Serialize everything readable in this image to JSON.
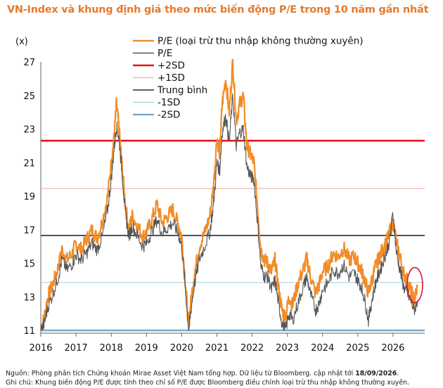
{
  "title": "VN-Index và khung định giá theo mức biến động P/E trong 10 năm gần nhất",
  "chart_data": {
    "type": "line",
    "unit_label": "(x)",
    "y_ticks": [
      11,
      13,
      15,
      17,
      19,
      21,
      23,
      25,
      27
    ],
    "x_ticks": [
      "2016",
      "2017",
      "2018",
      "2019",
      "2020",
      "2021",
      "2022",
      "2023",
      "2024",
      "2025",
      "2026"
    ],
    "ylim": [
      11,
      27
    ],
    "xlim": [
      2016.0,
      2026.9
    ],
    "legend": [
      "P/E (loại trừ thu nhập không thường xuyên)",
      "P/E",
      "+2SD",
      "+1SD",
      "Trung bình",
      "-1SD",
      "-2SD"
    ],
    "series": [
      {
        "name": "P/E (loại trừ thu nhập không thường xuyên)",
        "color": "#f28c28",
        "x": [
          2016.0,
          2016.1,
          2016.2,
          2016.35,
          2016.5,
          2016.6,
          2016.75,
          2016.9,
          2017.0,
          2017.15,
          2017.3,
          2017.45,
          2017.6,
          2017.75,
          2017.9,
          2018.0,
          2018.08,
          2018.15,
          2018.22,
          2018.3,
          2018.4,
          2018.5,
          2018.6,
          2018.75,
          2018.9,
          2019.0,
          2019.15,
          2019.3,
          2019.45,
          2019.6,
          2019.75,
          2019.9,
          2020.0,
          2020.1,
          2020.2,
          2020.25,
          2020.35,
          2020.5,
          2020.65,
          2020.8,
          2020.9,
          2021.0,
          2021.08,
          2021.15,
          2021.25,
          2021.35,
          2021.45,
          2021.55,
          2021.65,
          2021.75,
          2021.85,
          2021.95,
          2022.05,
          2022.15,
          2022.25,
          2022.35,
          2022.45,
          2022.55,
          2022.65,
          2022.75,
          2022.85,
          2022.95,
          2023.05,
          2023.15,
          2023.3,
          2023.45,
          2023.55,
          2023.65,
          2023.8,
          2023.9,
          2024.0,
          2024.15,
          2024.3,
          2024.45,
          2024.6,
          2024.75,
          2024.9,
          2025.0,
          2025.1,
          2025.2,
          2025.3,
          2025.4,
          2025.5,
          2025.6,
          2025.7,
          2025.8,
          2025.9,
          2026.0,
          2026.1,
          2026.2,
          2026.3,
          2026.4,
          2026.5,
          2026.6,
          2026.7
        ],
        "values": [
          11.0,
          11.8,
          13.0,
          13.8,
          14.8,
          15.8,
          15.2,
          15.6,
          16.2,
          15.8,
          16.4,
          17.0,
          16.5,
          17.5,
          19.0,
          21.0,
          22.5,
          24.5,
          23.0,
          21.0,
          18.5,
          17.0,
          17.8,
          17.2,
          16.6,
          16.8,
          17.6,
          18.5,
          17.4,
          17.8,
          18.2,
          17.3,
          16.6,
          14.0,
          11.2,
          12.5,
          14.2,
          16.0,
          16.8,
          17.8,
          19.5,
          22.5,
          21.5,
          24.5,
          26.0,
          24.0,
          27.0,
          23.5,
          24.5,
          25.0,
          22.0,
          21.5,
          21.0,
          18.5,
          15.8,
          15.2,
          15.0,
          14.5,
          15.2,
          13.5,
          12.2,
          11.8,
          13.0,
          12.5,
          13.8,
          14.6,
          15.3,
          14.3,
          13.2,
          13.7,
          14.5,
          14.8,
          15.6,
          15.4,
          15.9,
          15.2,
          15.4,
          15.0,
          14.6,
          14.0,
          13.2,
          14.0,
          14.8,
          15.3,
          15.8,
          16.2,
          16.8,
          17.5,
          16.2,
          15.4,
          14.4,
          14.0,
          13.4,
          12.8,
          13.6
        ],
        "dense": true
      },
      {
        "name": "P/E",
        "color": "#555555",
        "x": [
          2016.0,
          2016.1,
          2016.2,
          2016.35,
          2016.5,
          2016.6,
          2016.75,
          2016.9,
          2017.0,
          2017.15,
          2017.3,
          2017.45,
          2017.6,
          2017.75,
          2017.9,
          2018.0,
          2018.08,
          2018.15,
          2018.22,
          2018.3,
          2018.4,
          2018.5,
          2018.6,
          2018.75,
          2018.9,
          2019.0,
          2019.15,
          2019.3,
          2019.45,
          2019.6,
          2019.75,
          2019.9,
          2020.0,
          2020.1,
          2020.2,
          2020.25,
          2020.35,
          2020.5,
          2020.65,
          2020.8,
          2020.9,
          2021.0,
          2021.08,
          2021.15,
          2021.25,
          2021.35,
          2021.45,
          2021.55,
          2021.65,
          2021.75,
          2021.85,
          2021.95,
          2022.05,
          2022.15,
          2022.25,
          2022.35,
          2022.45,
          2022.55,
          2022.65,
          2022.75,
          2022.85,
          2022.95,
          2023.05,
          2023.15,
          2023.3,
          2023.45,
          2023.55,
          2023.65,
          2023.8,
          2023.9,
          2024.0,
          2024.15,
          2024.3,
          2024.45,
          2024.6,
          2024.75,
          2024.9,
          2025.0,
          2025.1,
          2025.2,
          2025.3,
          2025.4,
          2025.5,
          2025.6,
          2025.7,
          2025.8,
          2025.9,
          2026.0,
          2026.1,
          2026.2,
          2026.3,
          2026.4,
          2026.5,
          2026.6,
          2026.7
        ],
        "values": [
          11.0,
          11.4,
          12.4,
          13.2,
          14.2,
          15.2,
          14.6,
          15.0,
          15.5,
          15.2,
          15.6,
          16.2,
          15.8,
          16.6,
          18.2,
          20.0,
          21.8,
          23.2,
          22.4,
          20.6,
          18.0,
          16.6,
          17.2,
          16.6,
          16.0,
          16.2,
          16.9,
          17.6,
          16.8,
          17.1,
          17.4,
          16.8,
          16.0,
          13.6,
          11.0,
          12.0,
          13.6,
          15.2,
          16.0,
          16.9,
          18.4,
          21.0,
          20.5,
          22.8,
          23.8,
          22.2,
          25.0,
          22.0,
          22.8,
          23.0,
          20.8,
          20.2,
          20.0,
          17.5,
          14.8,
          14.2,
          14.2,
          13.4,
          14.0,
          12.6,
          11.4,
          11.0,
          12.0,
          11.6,
          12.6,
          13.6,
          14.2,
          13.2,
          12.2,
          12.6,
          13.4,
          13.8,
          14.6,
          14.4,
          14.9,
          14.2,
          14.4,
          14.0,
          13.6,
          12.8,
          11.6,
          12.8,
          13.8,
          14.4,
          15.0,
          15.6,
          16.3,
          18.0,
          15.6,
          14.6,
          13.6,
          13.2,
          12.8,
          12.2,
          12.8
        ],
        "dense": true
      },
      {
        "name": "+2SD",
        "color": "#e8161b",
        "value": 22.3,
        "width": 2.6
      },
      {
        "name": "+1SD",
        "color": "#f2b8b4",
        "value": 19.45,
        "width": 1.2
      },
      {
        "name": "Trung bình",
        "color": "#1b2a4e",
        "value": 16.65,
        "width": 1.6
      },
      {
        "name": "-1SD",
        "color": "#a9d3e6",
        "value": 13.85,
        "width": 1.2
      },
      {
        "name": "-2SD",
        "color": "#7aa9c7",
        "value": 11.0,
        "width": 2.6
      }
    ],
    "highlight": {
      "x": 2026.62,
      "y": 13.7,
      "color": "#d81e2a"
    }
  },
  "footnotes": {
    "source_prefix": "Nguồn: Phòng phân tích Chứng khoán Mirae Asset Việt Nam tổng hợp. Dữ liệu từ Bloomberg. cập nhật tới ",
    "source_date": "18/09/2026",
    "source_suffix": ".",
    "note": "Ghi chú: Khung biến động P/E được tính theo chỉ số P/E được Bloomberg điều chỉnh loại trừ thu nhập không thường xuyên."
  }
}
